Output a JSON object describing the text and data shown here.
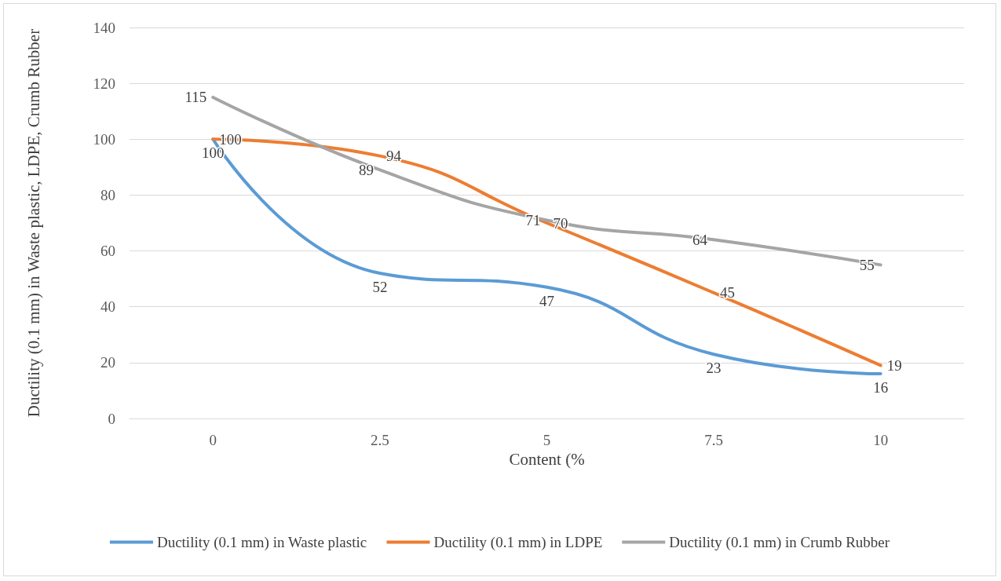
{
  "chart_data": {
    "type": "line",
    "xlabel": "Content (%",
    "ylabel": "Ductility (0.1 mm) in Waste plastic, LDPE, Crumb Rubber",
    "categories": [
      "0",
      "2.5",
      "5",
      "7.5",
      "10"
    ],
    "series": [
      {
        "name": "Ductility (0.1 mm) in Waste plastic",
        "color": "#5b9bd5",
        "values": [
          100,
          52,
          47,
          23,
          16
        ]
      },
      {
        "name": "Ductility (0.1 mm) in LDPE",
        "color": "#ed7d31",
        "values": [
          100,
          94,
          70,
          45,
          19
        ]
      },
      {
        "name": "Ductility (0.1 mm) in Crumb Rubber",
        "color": "#a5a5a5",
        "values": [
          115,
          89,
          71,
          64,
          55
        ]
      }
    ],
    "ylim": [
      0,
      140
    ],
    "yticks": [
      0,
      20,
      40,
      60,
      80,
      100,
      120,
      140
    ],
    "grid": "y",
    "legend": "bottom",
    "marker": "none",
    "line_style": "solid",
    "data_labels": true
  }
}
